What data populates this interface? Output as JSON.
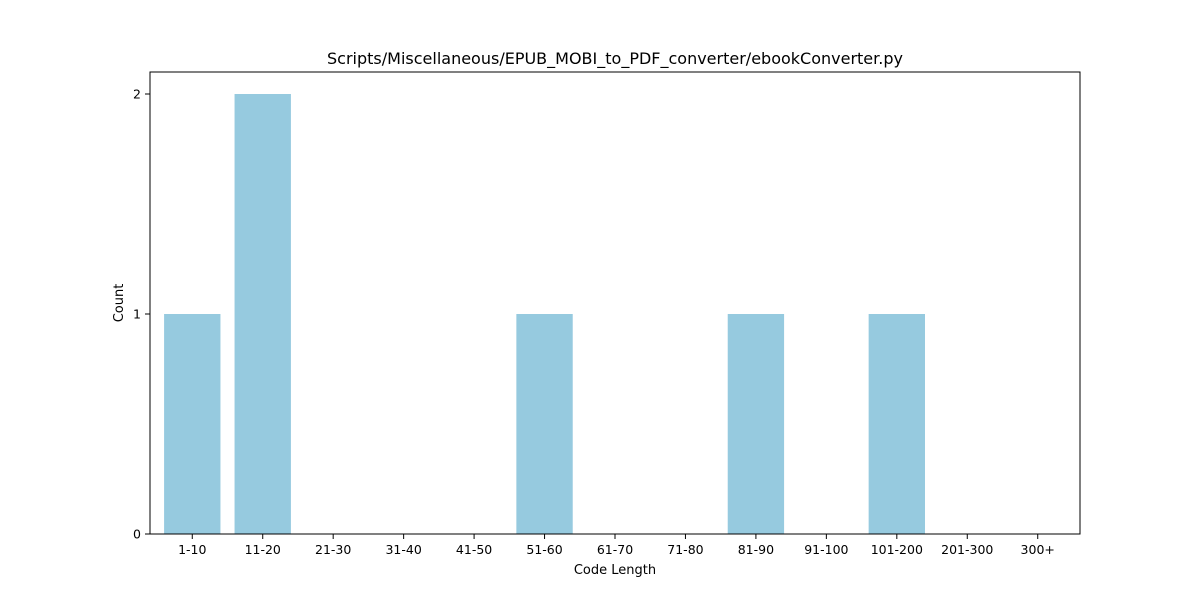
{
  "chart_data": {
    "type": "bar",
    "title": "Scripts/Miscellaneous/EPUB_MOBI_to_PDF_converter/ebookConverter.py",
    "xlabel": "Code Length",
    "ylabel": "Count",
    "categories": [
      "1-10",
      "11-20",
      "21-30",
      "31-40",
      "41-50",
      "51-60",
      "61-70",
      "71-80",
      "81-90",
      "91-100",
      "101-200",
      "201-300",
      "300+"
    ],
    "values": [
      1,
      2,
      0,
      0,
      0,
      1,
      0,
      0,
      1,
      0,
      1,
      0,
      0
    ],
    "yticks": [
      "0",
      "1",
      "2"
    ],
    "ylim": [
      0,
      2.1
    ],
    "grid": false,
    "bar_color": "#96cadf"
  }
}
